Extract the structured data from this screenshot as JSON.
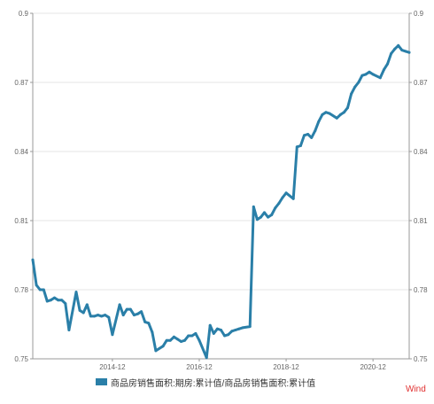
{
  "chart_data": {
    "type": "line",
    "title": "",
    "xlabel": "",
    "ylabel": "",
    "ylim": [
      0.75,
      0.9
    ],
    "y_ticks": [
      "0.75",
      "0.78",
      "0.81",
      "0.84",
      "0.87",
      "0.9"
    ],
    "x_ticks": [
      "2014-12",
      "2016-12",
      "2018-12",
      "2020-12"
    ],
    "x_tick_dates": [
      "2014-12",
      "2016-12",
      "2018-12",
      "2020-12"
    ],
    "x_range": [
      "2013-02",
      "2021-10"
    ],
    "grid": true,
    "legend_position": "bottom",
    "series": [
      {
        "name": "商品房销售面积:期房:累计值/商品房销售面积:累计值",
        "color": "#2a7fa8",
        "x": [
          "2013-02",
          "2013-03",
          "2013-04",
          "2013-05",
          "2013-06",
          "2013-07",
          "2013-08",
          "2013-09",
          "2013-10",
          "2013-11",
          "2013-12",
          "2014-02",
          "2014-03",
          "2014-04",
          "2014-05",
          "2014-06",
          "2014-07",
          "2014-08",
          "2014-09",
          "2014-10",
          "2014-11",
          "2014-12",
          "2015-02",
          "2015-03",
          "2015-04",
          "2015-05",
          "2015-06",
          "2015-07",
          "2015-08",
          "2015-09",
          "2015-10",
          "2015-11",
          "2015-12",
          "2016-02",
          "2016-03",
          "2016-04",
          "2016-05",
          "2016-06",
          "2016-07",
          "2016-08",
          "2016-09",
          "2016-10",
          "2016-11",
          "2016-12",
          "2017-02",
          "2017-03",
          "2017-04",
          "2017-05",
          "2017-06",
          "2017-07",
          "2017-08",
          "2017-09",
          "2017-10",
          "2017-11",
          "2017-12",
          "2018-02",
          "2018-03",
          "2018-04",
          "2018-05",
          "2018-06",
          "2018-07",
          "2018-08",
          "2018-09",
          "2018-10",
          "2018-11",
          "2018-12",
          "2019-02",
          "2019-03",
          "2019-04",
          "2019-05",
          "2019-06",
          "2019-07",
          "2019-08",
          "2019-09",
          "2019-10",
          "2019-11",
          "2019-12",
          "2020-02",
          "2020-03",
          "2020-04",
          "2020-05",
          "2020-06",
          "2020-07",
          "2020-08",
          "2020-09",
          "2020-10",
          "2020-11",
          "2020-12",
          "2021-02",
          "2021-03",
          "2021-04",
          "2021-05",
          "2021-06",
          "2021-07",
          "2021-08",
          "2021-09",
          "2021-10"
        ],
        "values": [
          0.793,
          0.782,
          0.78,
          0.78,
          0.775,
          0.7755,
          0.7765,
          0.7755,
          0.7755,
          0.774,
          0.7625,
          0.779,
          0.771,
          0.77,
          0.7735,
          0.7685,
          0.7685,
          0.769,
          0.7685,
          0.769,
          0.768,
          0.7605,
          0.7735,
          0.769,
          0.7715,
          0.7715,
          0.769,
          0.7695,
          0.7705,
          0.766,
          0.7655,
          0.7615,
          0.7535,
          0.7555,
          0.758,
          0.758,
          0.7595,
          0.7585,
          0.7575,
          0.758,
          0.76,
          0.76,
          0.761,
          0.758,
          0.7505,
          0.7645,
          0.761,
          0.763,
          0.7625,
          0.76,
          0.7605,
          0.762,
          0.7625,
          0.763,
          0.7635,
          0.764,
          0.816,
          0.8105,
          0.8115,
          0.8135,
          0.8115,
          0.8125,
          0.8155,
          0.8175,
          0.82,
          0.822,
          0.8195,
          0.842,
          0.8425,
          0.847,
          0.8475,
          0.846,
          0.849,
          0.853,
          0.856,
          0.857,
          0.8565,
          0.8545,
          0.856,
          0.857,
          0.859,
          0.865,
          0.868,
          0.87,
          0.873,
          0.8735,
          0.8745,
          0.8735,
          0.872,
          0.8755,
          0.878,
          0.8825,
          0.8845,
          0.886,
          0.884,
          0.8835,
          0.883
        ]
      }
    ]
  },
  "legend": {
    "label": "商品房销售面积:期房:累计值/商品房销售面积:累计值",
    "color": "#2a7fa8"
  },
  "watermark": "Wind"
}
